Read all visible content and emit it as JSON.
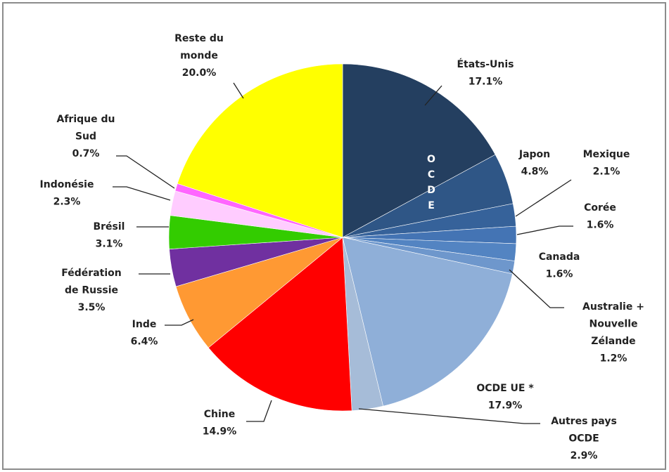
{
  "chart_data": {
    "type": "pie",
    "categories": [
      [
        "États-Unis"
      ],
      [
        "Japon"
      ],
      [
        "Mexique"
      ],
      [
        "Corée"
      ],
      [
        "Canada"
      ],
      [
        "Australie +",
        "Nouvelle",
        "Zélande"
      ],
      [
        "OCDE UE *"
      ],
      [
        "Autres pays",
        "OCDE"
      ],
      [
        "Chine"
      ],
      [
        "Inde"
      ],
      [
        "Fédération",
        "de Russie"
      ],
      [
        "Brésil"
      ],
      [
        "Indonésie"
      ],
      [
        "Afrique du",
        "Sud"
      ],
      [
        "Reste du",
        "monde"
      ]
    ],
    "values": [
      17.1,
      4.8,
      2.1,
      1.6,
      1.6,
      1.2,
      17.9,
      2.9,
      14.9,
      6.4,
      3.5,
      3.1,
      2.3,
      0.7,
      20.0
    ],
    "value_labels": [
      "17.1%",
      "4.8%",
      "2.1%",
      "1.6%",
      "1.6%",
      "1.2%",
      "17.9%",
      "2.9%",
      "14.9%",
      "6.4%",
      "3.5%",
      "3.1%",
      "2.3%",
      "0.7%",
      "20.0%"
    ],
    "colors": [
      "#243f60",
      "#2f5686",
      "#36629a",
      "#4474b4",
      "#5384c2",
      "#6e97cc",
      "#8fafd8",
      "#a6bcd8",
      "#ff0000",
      "#ff9933",
      "#7030a0",
      "#33cc00",
      "#ffccff",
      "#ff66ff",
      "#ffff00"
    ],
    "annotation": "OCDE"
  }
}
